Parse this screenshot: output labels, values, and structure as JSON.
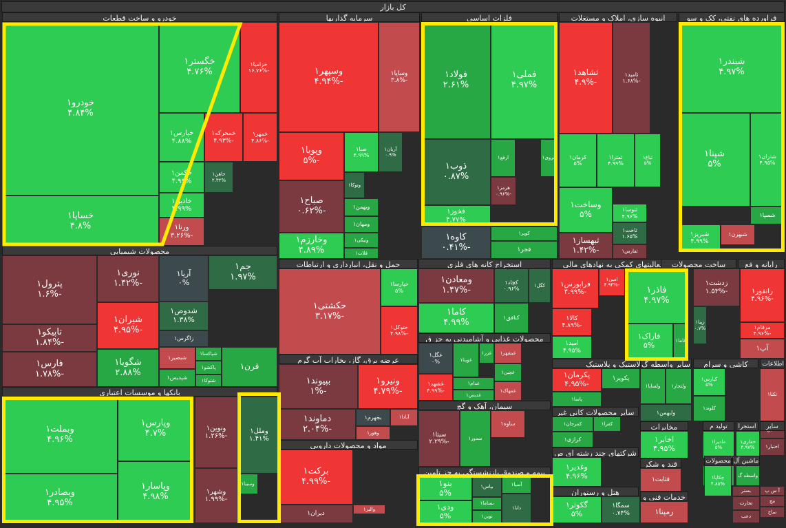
{
  "title": "کل بازار",
  "colors": {
    "bright_green": "#2ecc52",
    "mid_green": "#27a845",
    "dark_green": "#2f6b44",
    "neutral": "#3d4a4d",
    "light_red": "#c24b4e",
    "mid_red": "#d93636",
    "bright_red": "#f03535",
    "dark_red": "#7a3a40",
    "highlight": "#ffea00"
  },
  "chart_data": {
    "type": "treemap",
    "sectors": [
      {
        "name": "خودرو و ساخت قطعات",
        "stocks": [
          {
            "name": "خودرو۱",
            "change": "۴.۸۴%",
            "value": 4.84
          },
          {
            "name": "خساپا۱",
            "change": "۴.۸%",
            "value": 4.8
          },
          {
            "name": "خگستر۱",
            "change": "۴.۷۶%",
            "value": 4.76
          },
          {
            "name": "خپارس۱",
            "change": "۴.۸۸%",
            "value": 4.88
          },
          {
            "name": "خزامیا۱",
            "change": "-۱۶.۷۶%",
            "value": -16.76
          },
          {
            "name": "خمحرکه۱",
            "change": "-۴.۹۳%",
            "value": -4.93
          },
          {
            "name": "خمهر۱",
            "change": "-۴.۸۶%",
            "value": -4.86
          },
          {
            "name": "خکمن۱",
            "change": "۴.۹۹%",
            "value": 4.99
          },
          {
            "name": "خاهن۱",
            "change": "۲.۳۲%",
            "value": 2.32
          },
          {
            "name": "خاذین۱",
            "change": "۴.۹۹%",
            "value": 4.99
          },
          {
            "name": "ورنا۱",
            "change": "-۳.۲۶%",
            "value": -3.26
          }
        ]
      },
      {
        "name": "سرمایه گذاریها",
        "stocks": [
          {
            "name": "وسپهر۱",
            "change": "-۴.۹۴%",
            "value": -4.94
          },
          {
            "name": "وساپا۱",
            "change": "-۳.۸%",
            "value": -3.8
          },
          {
            "name": "وپویا۱",
            "change": "-۵%",
            "value": -5
          },
          {
            "name": "صبا۱",
            "change": "۴.۹۹%",
            "value": 4.99
          },
          {
            "name": "آریان۱",
            "change": "۰.۹%",
            "value": 0.9
          },
          {
            "name": "صباح۱",
            "change": "-۰.۶۲%",
            "value": -0.62
          },
          {
            "name": "وخارزم۱",
            "change": "۴.۸۹%",
            "value": 4.89
          },
          {
            "name": "وتوکا۱",
            "change": "",
            "value": 1.0
          },
          {
            "name": "وبهمن۱",
            "change": "",
            "value": 3.0
          },
          {
            "name": "ومهان۱",
            "change": "",
            "value": 3.0
          },
          {
            "name": "ونیکی۱",
            "change": "",
            "value": 3.0
          },
          {
            "name": "فلات۱",
            "change": "",
            "value": 3.0
          }
        ]
      },
      {
        "name": "فلزات اساسی",
        "stocks": [
          {
            "name": "فولاد۱",
            "change": "۲.۶۱%",
            "value": 2.61
          },
          {
            "name": "فملی۱",
            "change": "۴.۹۷%",
            "value": 4.97
          },
          {
            "name": "ذوب۱",
            "change": "۰.۸۷%",
            "value": 0.87
          },
          {
            "name": "فخوز۱",
            "change": "۴.۷۷%",
            "value": 4.77
          },
          {
            "name": "ارفع۱",
            "change": "",
            "value": 4.0
          },
          {
            "name": "فروی۱",
            "change": "",
            "value": 4.0
          },
          {
            "name": "هرمز۱",
            "change": "-۰.۹۶%",
            "value": -0.96
          },
          {
            "name": "کاوه۱",
            "change": "-۰.۴۱%",
            "value": -0.41
          },
          {
            "name": "کویر۱",
            "change": "",
            "value": 4.0
          },
          {
            "name": "فجر۱",
            "change": "",
            "value": 4.0
          }
        ]
      },
      {
        "name": "انبوه سازی، املاک و مستغلات",
        "stocks": [
          {
            "name": "ثشاهد۱",
            "change": "-۴.۹%",
            "value": -4.9
          },
          {
            "name": "ثامید۱",
            "change": "-۱.۶۸%",
            "value": -1.68
          },
          {
            "name": "کرمان۱",
            "change": "۵%",
            "value": 5
          },
          {
            "name": "ثمترا۱",
            "change": "۴.۹۹%",
            "value": 4.99
          },
          {
            "name": "ثباغ۱",
            "change": "۵%",
            "value": 5
          },
          {
            "name": "وساخت۱",
            "change": "۵%",
            "value": 5
          },
          {
            "name": "ثنوسا۱",
            "change": "۴.۹۶%",
            "value": 4.96
          },
          {
            "name": "ثاخت۱",
            "change": "۱.۶۵%",
            "value": 1.65
          },
          {
            "name": "ثبهساز۱",
            "change": "-۱.۴۲%",
            "value": -1.42
          },
          {
            "name": "ثفارس۱",
            "change": "",
            "value": -1.0
          }
        ]
      },
      {
        "name": "فراورده های نفتی، کک و سو",
        "stocks": [
          {
            "name": "شبندر۱",
            "change": "۴.۹۷%",
            "value": 4.97
          },
          {
            "name": "شپنا۱",
            "change": "۵%",
            "value": 5
          },
          {
            "name": "شتران۱",
            "change": "۴.۹۵%",
            "value": 4.95
          },
          {
            "name": "شسپا۱",
            "change": "",
            "value": 4.0
          },
          {
            "name": "شبریز۱",
            "change": "۴.۹۹%",
            "value": 4.99
          },
          {
            "name": "شبهرن۱",
            "change": "",
            "value": -3.0
          }
        ]
      },
      {
        "name": "محصولات شیمیایی",
        "stocks": [
          {
            "name": "پترول۱",
            "change": "-۱.۶%",
            "value": -1.6
          },
          {
            "name": "نوری۱",
            "change": "-۱.۴۲%",
            "value": -1.42
          },
          {
            "name": "آریا۱",
            "change": "۰%",
            "value": 0
          },
          {
            "name": "جم۱",
            "change": "۱.۹۷%",
            "value": 1.97
          },
          {
            "name": "تاپیکو۱",
            "change": "-۱.۸۴%",
            "value": -1.84
          },
          {
            "name": "شیران۱",
            "change": "-۴.۹۵%",
            "value": -4.95
          },
          {
            "name": "شدوص۱",
            "change": "۱.۳۸%",
            "value": 1.38
          },
          {
            "name": "زاگرس۱",
            "change": "",
            "value": 0
          },
          {
            "name": "فارس۱",
            "change": "-۱.۷۸%",
            "value": -1.78
          },
          {
            "name": "شگویا۱",
            "change": "۲.۸۸%",
            "value": 2.88
          },
          {
            "name": "شپاکسا۱",
            "change": "",
            "value": 3.0
          },
          {
            "name": "شپدیس۱",
            "change": "",
            "value": 3.0
          },
          {
            "name": "شبصیر۱",
            "change": "",
            "value": -4.0
          },
          {
            "name": "پاکشو۱",
            "change": "",
            "value": 3.0
          },
          {
            "name": "قرن۱",
            "change": "",
            "value": 3.0
          },
          {
            "name": "شتوکا۱",
            "change": "",
            "value": 3.0
          }
        ]
      },
      {
        "name": "بانکها و موسسات اعتباری",
        "stocks": [
          {
            "name": "وبملت۱",
            "change": "۴.۹۶%",
            "value": 4.96
          },
          {
            "name": "وپارس۱",
            "change": "۴.۷%",
            "value": 4.7
          },
          {
            "name": "ونوین۱",
            "change": "-۱.۲۶%",
            "value": -1.26
          },
          {
            "name": "وملل۱",
            "change": "۱.۴۱%",
            "value": 1.41
          },
          {
            "name": "وبصادر۱",
            "change": "۴.۹۵%",
            "value": 4.95
          },
          {
            "name": "وپاسار۱",
            "change": "۴.۹۸%",
            "value": 4.98
          },
          {
            "name": "وشهر۱",
            "change": "-۱.۹۹%",
            "value": -1.99
          },
          {
            "name": "وسینا۱",
            "change": "",
            "value": 4.0
          }
        ]
      },
      {
        "name": "حمل و نقل، انبارداری و ارتباطات",
        "stocks": [
          {
            "name": "حکشتی۱",
            "change": "-۳.۱۷%",
            "value": -3.17
          },
          {
            "name": "حپارسا۱",
            "change": "۵%",
            "value": 5
          },
          {
            "name": "حتوکل۱",
            "change": "-۴.۹۸%",
            "value": -4.98
          }
        ]
      },
      {
        "name": "استخراج کانه های فلزی",
        "stocks": [
          {
            "name": "ومعادن۱",
            "change": "-۱.۴۷%",
            "value": -1.47
          },
          {
            "name": "کچاد۱",
            "change": "۰.۹۶%",
            "value": 0.96
          },
          {
            "name": "کگل۱",
            "change": "",
            "value": 1.0
          },
          {
            "name": "کاما۱",
            "change": "۴.۹۹%",
            "value": 4.99
          },
          {
            "name": "کنافق۱",
            "change": "",
            "value": 4.0
          }
        ]
      },
      {
        "name": "محصولات غذایی و آشامیدنی به جز ق",
        "stocks": [
          {
            "name": "غگل۱",
            "change": "۰%",
            "value": 0
          },
          {
            "name": "غویتا۱",
            "change": "",
            "value": 4.0
          },
          {
            "name": "غبشهر۱",
            "change": "",
            "value": -4.0
          },
          {
            "name": "غزر۱",
            "change": "",
            "value": 4.0
          },
          {
            "name": "غدام۱",
            "change": "",
            "value": 4.0
          },
          {
            "name": "غشهد۱",
            "change": "-۴.۹۹%",
            "value": -4.99
          },
          {
            "name": "غچین۱",
            "change": "",
            "value": 4.0
          },
          {
            "name": "غدیس۱",
            "change": "",
            "value": 4.0
          },
          {
            "name": "غمهاک۱",
            "change": "",
            "value": -4.0
          }
        ]
      },
      {
        "name": "عرضه برق، گاز، بخاراب آب گرم",
        "stocks": [
          {
            "name": "بپیوند۱",
            "change": "-۱%",
            "value": -1
          },
          {
            "name": "ونیرو۱",
            "change": "-۴.۷۹%",
            "value": -4.79
          },
          {
            "name": "دماوند۱",
            "change": "-۲.۰۴%",
            "value": -2.04
          },
          {
            "name": "بجهرم۱",
            "change": "",
            "value": 0
          },
          {
            "name": "وهور۱",
            "change": "",
            "value": -3.0
          },
          {
            "name": "آبادا۱",
            "change": "",
            "value": -4.0
          }
        ]
      },
      {
        "name": "سیمان، آهک و گچ",
        "stocks": [
          {
            "name": "سیتا۱",
            "change": "-۲.۲۹%",
            "value": -2.29
          },
          {
            "name": "سدور۱",
            "change": "",
            "value": 4.0
          },
          {
            "name": "ساوه۱",
            "change": "",
            "value": -4.0
          }
        ]
      },
      {
        "name": "مواد و محصولات دارویی",
        "stocks": [
          {
            "name": "برکت۱",
            "change": "-۴.۹۹%",
            "value": -4.99
          },
          {
            "name": "والبر۱",
            "change": "",
            "value": -3.0
          },
          {
            "name": "دیران۱",
            "change": "",
            "value": -1.0
          }
        ]
      },
      {
        "name": "رایانه و فع",
        "stocks": [
          {
            "name": "زدشت۱",
            "change": "-۱.۵۳%",
            "value": -1.53
          },
          {
            "name": "رانفور۱",
            "change": "-۴.۹۶%",
            "value": -4.96
          },
          {
            "name": "مرقام۱",
            "change": "-۴.۹۶%",
            "value": -4.96
          },
          {
            "name": "زپیا۱",
            "change": "۰.۷%",
            "value": 0.7
          },
          {
            "name": "آپ۱",
            "change": "",
            "value": -4.0
          }
        ]
      },
      {
        "name": "فعالیتهای کمکی به نهادهای مالی",
        "stocks": [
          {
            "name": "فرابورس۱",
            "change": "-۴.۹۹%",
            "value": -4.99
          },
          {
            "name": "امین۱",
            "change": "-۴.۹۳%",
            "value": -4.93
          },
          {
            "name": "کالا۱",
            "change": "-۴.۸۹%",
            "value": -4.89
          },
          {
            "name": "امید۱",
            "change": "۴.۹۵%",
            "value": 4.95
          }
        ]
      },
      {
        "name": "ساخت محصولات",
        "stocks": [
          {
            "name": "فاذر۱",
            "change": "۴.۹۷%",
            "value": 4.97
          },
          {
            "name": "فاراک۱",
            "change": "۵%",
            "value": 5
          },
          {
            "name": "فاما۱",
            "change": "",
            "value": 4.0
          }
        ]
      },
      {
        "name": "لاستیک و پلاستیک",
        "stocks": [
          {
            "name": "پکرمان۱",
            "change": "-۴.۹۵%",
            "value": -4.95
          },
          {
            "name": "پکویر۱",
            "change": "",
            "value": 4.0
          },
          {
            "name": "پاسا۱",
            "change": "",
            "value": 4.0
          }
        ]
      },
      {
        "name": "سایر واسطه گ",
        "stocks": [
          {
            "name": "ولساپا۱",
            "change": "",
            "value": 4.0
          },
          {
            "name": "ولتجار۱",
            "change": "",
            "value": 4.0
          },
          {
            "name": "ولبهمن۱",
            "change": "",
            "value": 1.0
          }
        ]
      },
      {
        "name": "کاشی و سرام",
        "stocks": [
          {
            "name": "کپارس۱",
            "change": "۵%",
            "value": 5
          },
          {
            "name": "کلوند۱",
            "change": "",
            "value": 4.0
          }
        ]
      },
      {
        "name": "اطلاعات و",
        "stocks": [
          {
            "name": "ماشین۱",
            "change": "",
            "value": -1.0
          },
          {
            "name": "اختبار۱",
            "change": "",
            "value": -1.0
          },
          {
            "name": "تکنا۱",
            "change": "",
            "value": -4.0
          }
        ]
      },
      {
        "name": "سایر محصولات کانی غیر",
        "stocks": [
          {
            "name": "کمرجان۱",
            "change": "",
            "value": 4.0
          },
          {
            "name": "کفرا۱",
            "change": "",
            "value": 4.0
          },
          {
            "name": "کرازی۱",
            "change": "",
            "value": 4.0
          }
        ]
      },
      {
        "name": "شرکتهای چند رشته ای ص",
        "stocks": [
          {
            "name": "وغدیر۱",
            "change": "۴.۹۶%",
            "value": 4.96
          }
        ]
      },
      {
        "name": "هتل و رستوران",
        "stocks": [
          {
            "name": "گکوثر۱",
            "change": "۵%",
            "value": 5
          },
          {
            "name": "سمگا۱",
            "change": "۰.۷۴%",
            "value": 0.74
          }
        ]
      },
      {
        "name": "مخابرات",
        "stocks": [
          {
            "name": "اخابر۱",
            "change": "۴.۹۵%",
            "value": 4.95
          }
        ]
      },
      {
        "name": "تولید م",
        "stocks": [
          {
            "name": "مادیرا۱",
            "change": "۵%",
            "value": 5
          },
          {
            "name": "محصولا",
            "change": "",
            "value": 4.0
          }
        ]
      },
      {
        "name": "استخرا",
        "stocks": [
          {
            "name": "حفاری۱",
            "change": "۴.۹۷%",
            "value": 4.97
          },
          {
            "name": "واسطه گ",
            "change": "",
            "value": 4.0
          }
        ]
      },
      {
        "name": "قند و شکر",
        "stocks": [
          {
            "name": "قثابت۱",
            "change": "",
            "value": -4.0
          }
        ]
      },
      {
        "name": "خدمات فنی و",
        "stocks": [
          {
            "name": "رمپنا۱",
            "change": "",
            "value": -4.0
          }
        ]
      },
      {
        "name": "محصولات کاغذ",
        "stocks": [
          {
            "name": "چکاپا۱",
            "change": "۴.۸۵%",
            "value": 4.85
          }
        ]
      },
      {
        "name": "ماشین آل",
        "stocks": [
          {
            "name": "تجارت",
            "change": "",
            "value": -1.0
          }
        ]
      },
      {
        "name": "بیمه و صندوق بازنشستگی به جز تامین",
        "stocks": [
          {
            "name": "بنو۱",
            "change": "۵%",
            "value": 5
          },
          {
            "name": "ودی۱",
            "change": "۵%",
            "value": 5
          },
          {
            "name": "بپاس۱",
            "change": "",
            "value": 1.0
          },
          {
            "name": "بساما۱",
            "change": "",
            "value": 4.0
          },
          {
            "name": "نوین۱",
            "change": "",
            "value": 4.0
          },
          {
            "name": "آسیا۱",
            "change": "",
            "value": 4.0
          },
          {
            "name": "دانا۱",
            "change": "",
            "value": 1.0
          }
        ]
      },
      {
        "name": "سایر",
        "stocks": [
          {
            "name": "آ س پ",
            "change": "",
            "value": -1.0
          },
          {
            "name": "بستر",
            "change": "",
            "value": -1.0
          },
          {
            "name": "مج",
            "change": "",
            "value": -1.0
          },
          {
            "name": "ساخ",
            "change": "",
            "value": -1.0
          },
          {
            "name": "دعب",
            "change": "",
            "value": -1.0
          }
        ]
      }
    ]
  }
}
